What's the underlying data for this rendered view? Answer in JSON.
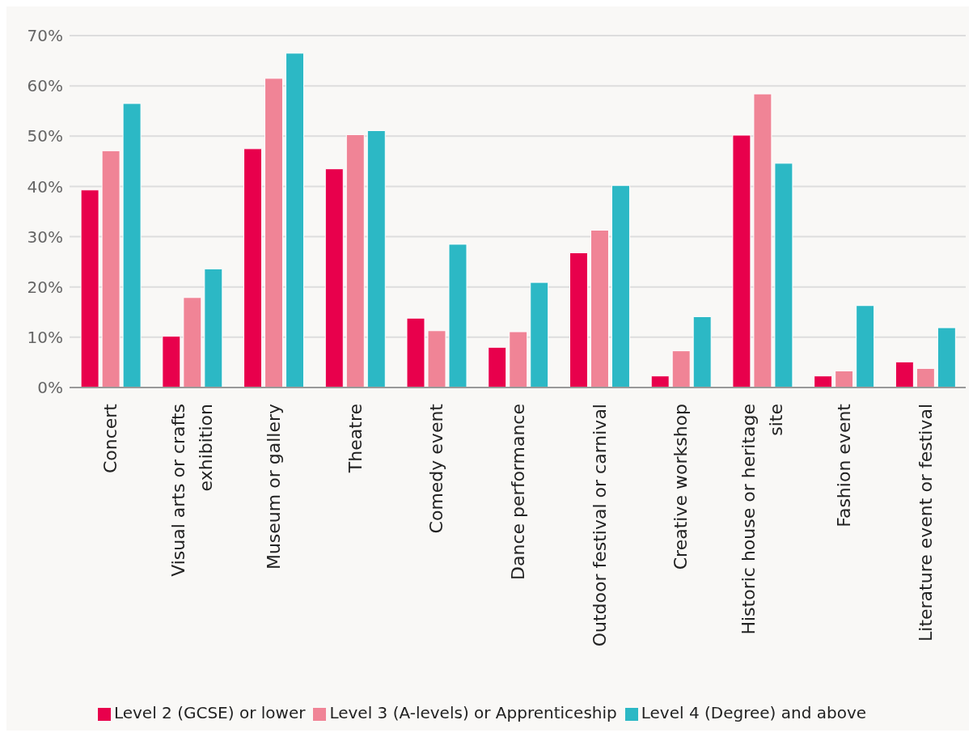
{
  "chart_data": {
    "type": "bar",
    "categories": [
      "Concert",
      "Visual arts or crafts exhibition",
      "Museum or gallery",
      "Theatre",
      "Comedy event",
      "Dance performance",
      "Outdoor festival or carnival",
      "Creative workshop",
      "Historic house or heritage site",
      "Fashion event",
      "Literature event or festival"
    ],
    "series": [
      {
        "name": "Level 2 (GCSE) or lower",
        "color": "#e8004c",
        "values": [
          39.3,
          10.2,
          47.5,
          43.5,
          13.8,
          8.0,
          26.8,
          2.3,
          50.2,
          2.3,
          5.1
        ]
      },
      {
        "name": "Level 3 (A-levels) or Apprenticeship",
        "color": "#f08496",
        "values": [
          47.1,
          17.9,
          61.5,
          50.3,
          11.3,
          11.1,
          31.3,
          7.3,
          58.4,
          3.3,
          3.8
        ]
      },
      {
        "name": "Level 4 (Degree) and above",
        "color": "#2cb8c5",
        "values": [
          56.5,
          23.6,
          66.5,
          51.1,
          28.5,
          20.9,
          40.2,
          14.1,
          44.6,
          16.3,
          11.9
        ]
      }
    ],
    "ylim": [
      0,
      70
    ],
    "yticks": [
      {
        "value": 0,
        "label": "0%"
      },
      {
        "value": 10,
        "label": "10%"
      },
      {
        "value": 20,
        "label": "20%"
      },
      {
        "value": 30,
        "label": "30%"
      },
      {
        "value": 40,
        "label": "40%"
      },
      {
        "value": 50,
        "label": "50%"
      },
      {
        "value": 60,
        "label": "60%"
      },
      {
        "value": 70,
        "label": "70%"
      }
    ],
    "grid": "y",
    "legend": "bottom"
  }
}
